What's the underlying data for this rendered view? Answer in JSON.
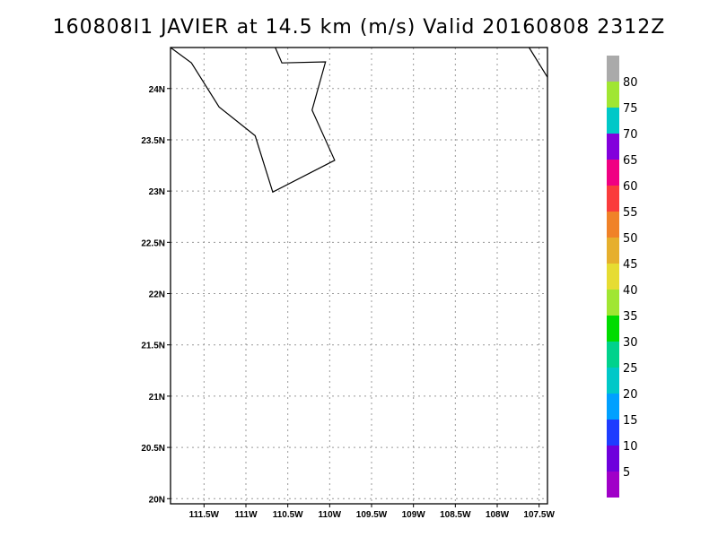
{
  "title": "160808I1 JAVIER at 14.5 km (m/s) Valid 20160808 2312Z",
  "map": {
    "lon_range": [
      -111.9,
      -107.4
    ],
    "lat_range": [
      19.95,
      24.4
    ],
    "x_ticks": [
      {
        "value": -111.5,
        "label": "111.5W"
      },
      {
        "value": -111.0,
        "label": "111W"
      },
      {
        "value": -110.5,
        "label": "110.5W"
      },
      {
        "value": -110.0,
        "label": "110W"
      },
      {
        "value": -109.5,
        "label": "109.5W"
      },
      {
        "value": -109.0,
        "label": "109W"
      },
      {
        "value": -108.5,
        "label": "108.5W"
      },
      {
        "value": -108.0,
        "label": "108W"
      },
      {
        "value": -107.5,
        "label": "107.5W"
      }
    ],
    "y_ticks": [
      {
        "value": 20.0,
        "label": "20N"
      },
      {
        "value": 20.5,
        "label": "20.5N"
      },
      {
        "value": 21.0,
        "label": "21N"
      },
      {
        "value": 21.5,
        "label": "21.5N"
      },
      {
        "value": 22.0,
        "label": "22N"
      },
      {
        "value": 22.5,
        "label": "22.5N"
      },
      {
        "value": 23.0,
        "label": "23N"
      },
      {
        "value": 23.5,
        "label": "23.5N"
      },
      {
        "value": 24.0,
        "label": "24N"
      }
    ],
    "grid": true,
    "coastlines": [
      [
        [
          -111.9,
          24.4
        ],
        [
          -111.65,
          24.25
        ],
        [
          -111.32,
          23.82
        ],
        [
          -110.89,
          23.54
        ],
        [
          -110.68,
          22.99
        ],
        [
          -109.94,
          23.3
        ],
        [
          -110.21,
          23.79
        ],
        [
          -110.05,
          24.26
        ],
        [
          -110.57,
          24.25
        ],
        [
          -110.65,
          24.4
        ]
      ],
      [
        [
          -107.62,
          24.4
        ],
        [
          -107.4,
          24.11
        ]
      ]
    ]
  },
  "colorbar": {
    "labels": [
      "5",
      "10",
      "15",
      "20",
      "25",
      "30",
      "35",
      "40",
      "45",
      "50",
      "55",
      "60",
      "65",
      "70",
      "75",
      "80"
    ],
    "colors": [
      "#a000c8",
      "#6e00dc",
      "#1e3cff",
      "#00a0ff",
      "#00c8c8",
      "#00d28c",
      "#00dc00",
      "#a0e632",
      "#e6dc32",
      "#e6af2d",
      "#f08228",
      "#fa3c3c",
      "#f00082",
      "#8200dc",
      "#00c8c8",
      "#a0e632",
      "#aaaaaa"
    ]
  }
}
